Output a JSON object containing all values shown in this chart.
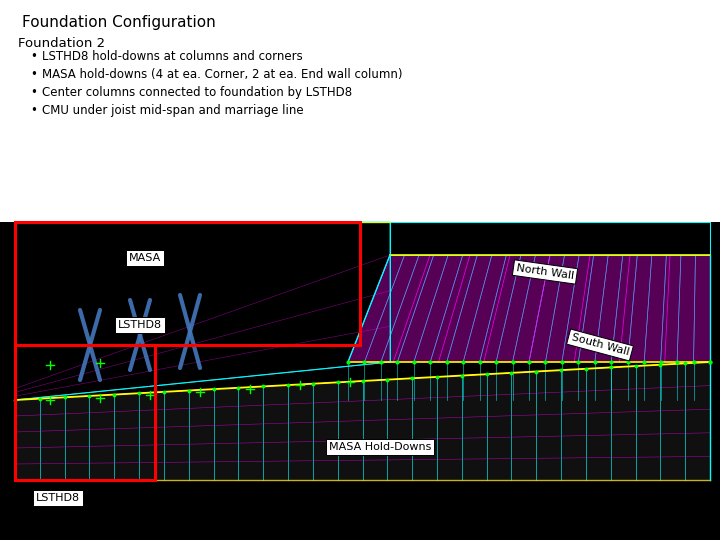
{
  "title": "Foundation Configuration",
  "title_fontsize": 11,
  "background_color": "#ffffff",
  "section_heading": "Foundation 2",
  "section_heading_fontsize": 9.5,
  "bullet_points": [
    "LSTHD8 hold-downs at columns and corners",
    "MASA hold-downs (4 at ea. Corner, 2 at ea. End wall column)",
    "Center columns connected to foundation by LSTHD8",
    "CMU under joist mid-span and marriage line"
  ],
  "bullet_fontsize": 8.5,
  "image_bg": "#000000",
  "cyan": "#00ffff",
  "magenta": "#ff00ff",
  "yellow": "#ffff00",
  "green": "#00ff00",
  "blue_brace": "#4477bb",
  "red_box": "#ff0000",
  "white": "#ffffff",
  "label_fontsize": 8
}
